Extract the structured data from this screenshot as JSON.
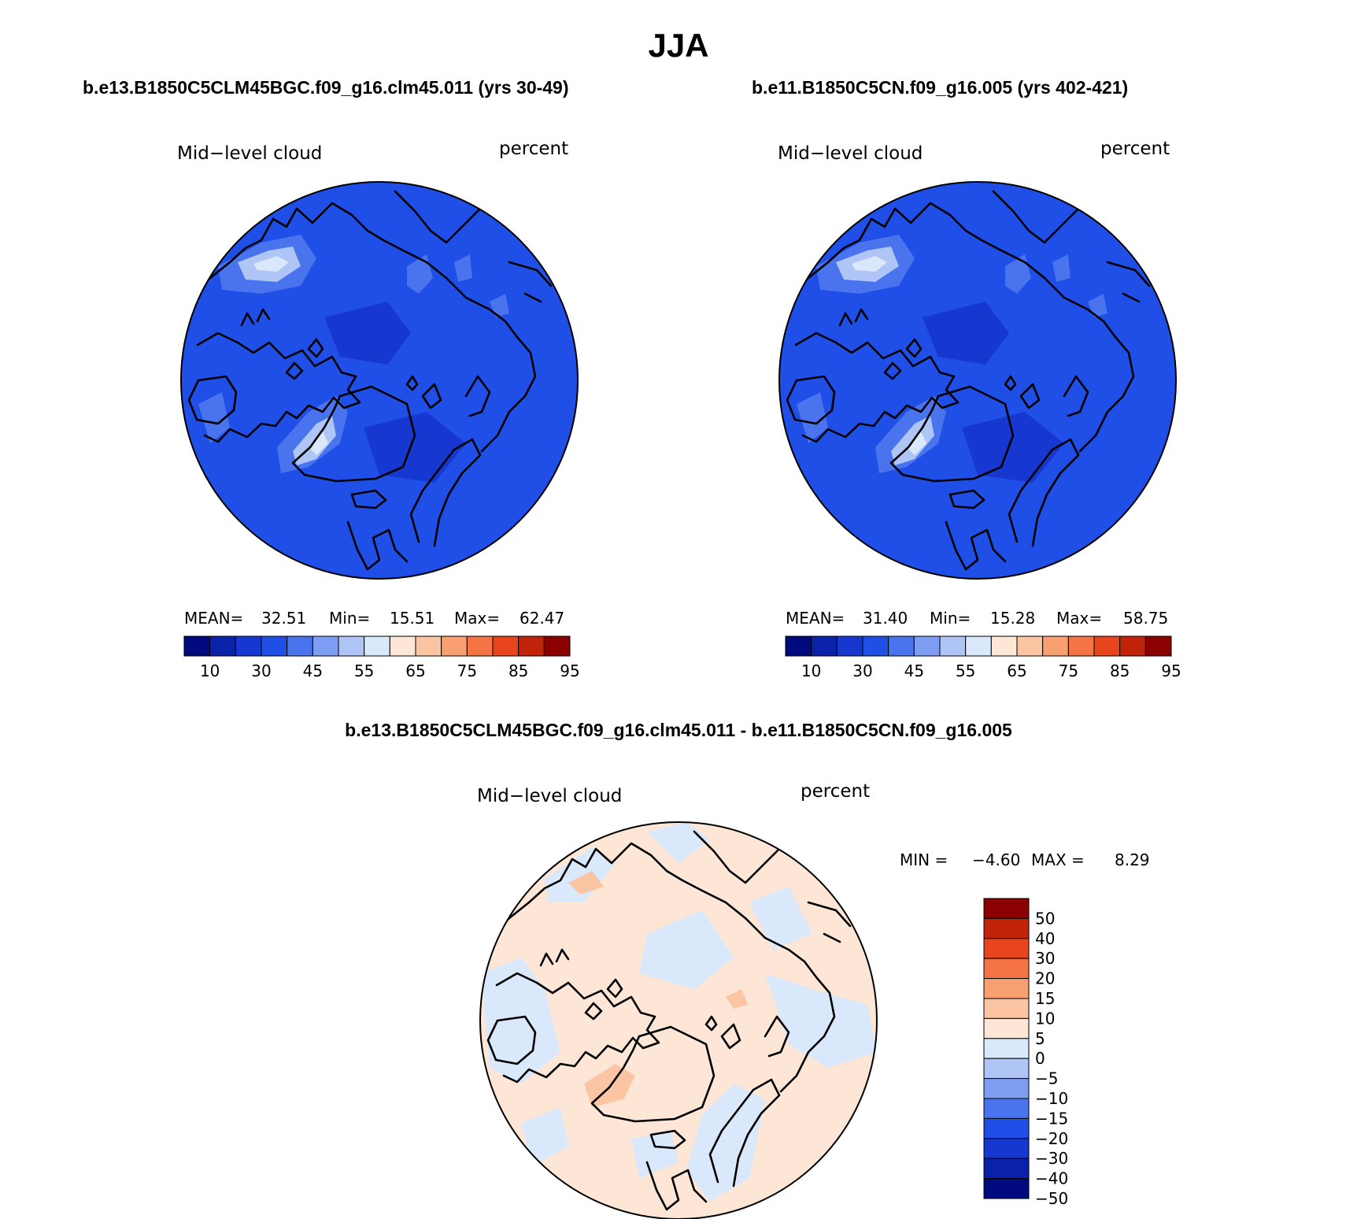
{
  "figure": {
    "title": "JJA",
    "panel_a": {
      "case_title": "b.e13.B1850C5CLM45BGC.f09_g16.clm45.011 (yrs 30-49)",
      "variable": "Mid−level cloud",
      "units": "percent",
      "stats": {
        "mean_label": "MEAN=",
        "mean": "32.51",
        "min_label": "Min=",
        "min": "15.51",
        "max_label": "Max=",
        "max": "62.47"
      }
    },
    "panel_b": {
      "case_title": "b.e11.B1850C5CN.f09_g16.005 (yrs 402-421)",
      "variable": "Mid−level cloud",
      "units": "percent",
      "stats": {
        "mean_label": "MEAN=",
        "mean": "31.40",
        "min_label": "Min=",
        "min": "15.28",
        "max_label": "Max=",
        "max": "58.75"
      }
    },
    "panel_diff": {
      "case_title": "b.e13.B1850C5CLM45BGC.f09_g16.clm45.011 - b.e11.B1850C5CN.f09_g16.005",
      "variable": "Mid−level cloud",
      "units": "percent",
      "stats": {
        "min_label": "MIN =",
        "min": "−4.60",
        "max_label": "MAX =",
        "max": "8.29"
      }
    }
  },
  "colorbar_abs": {
    "colors": [
      "#000a7f",
      "#0a21aa",
      "#1638d0",
      "#1f4fe6",
      "#4a73ee",
      "#7d9ef2",
      "#aec5f5",
      "#d9e8fa",
      "#fde6d5",
      "#fbc5a3",
      "#f9a071",
      "#f47446",
      "#e8451e",
      "#c2240a",
      "#8b0000"
    ],
    "labels": [
      "10",
      "30",
      "45",
      "55",
      "65",
      "75",
      "85",
      "95"
    ]
  },
  "colorbar_diff": {
    "colors": [
      "#8b0000",
      "#c2240a",
      "#e8451e",
      "#f47446",
      "#f9a071",
      "#fbc5a3",
      "#fde6d5",
      "#d9e8fa",
      "#aec5f5",
      "#7d9ef2",
      "#4a73ee",
      "#1f4fe6",
      "#1638d0",
      "#0a21aa",
      "#000a7f"
    ],
    "labels": [
      "50",
      "40",
      "30",
      "20",
      "15",
      "10",
      "5",
      "0",
      "−5",
      "−10",
      "−15",
      "−20",
      "−30",
      "−40",
      "−50"
    ]
  },
  "map_colors": {
    "abs_base": "#1f4fe6",
    "abs_low": "#1638d0",
    "abs_mid": "#4a73ee",
    "abs_light": "#7d9ef2",
    "abs_lighter": "#aec5f5",
    "abs_lightest": "#d9e8fa",
    "diff_pos": "#fde6d5",
    "diff_pos2": "#fbc5a3",
    "diff_neg": "#d9e8fa"
  }
}
